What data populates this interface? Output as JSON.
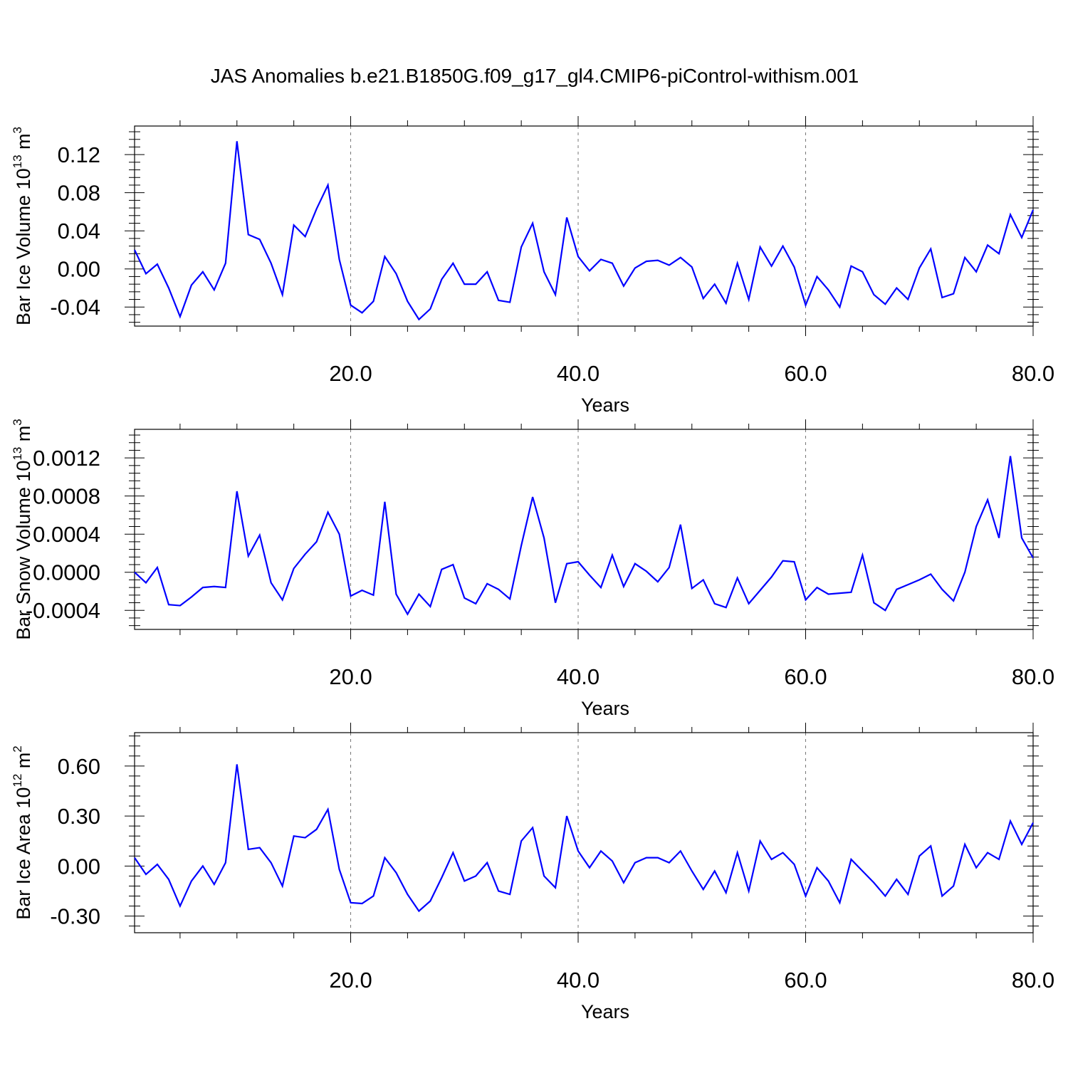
{
  "title": "JAS Anomalies b.e21.B1850G.f09_g17_gl4.CMIP6-piControl-withism.001",
  "series_color": "#0000ff",
  "chart_data": [
    {
      "type": "line",
      "ylabel": "Bar Ice Volume 10",
      "ylabel_exp": "13",
      "ylabel_unit": " m",
      "ylabel_unit_exp": "3",
      "xlabel": "Years",
      "xlim": [
        1,
        80
      ],
      "ylim": [
        -0.06,
        0.15
      ],
      "x_ticks": [
        20,
        40,
        60,
        80
      ],
      "x_tick_labels": [
        "20.0",
        "40.0",
        "60.0",
        "80.0"
      ],
      "y_ticks": [
        -0.04,
        0.0,
        0.04,
        0.08,
        0.12
      ],
      "y_tick_labels": [
        "-0.04",
        "0.00",
        "0.04",
        "0.08",
        "0.12"
      ],
      "grid": "vertical dashed at major x ticks",
      "values": [
        0.02,
        -0.005,
        0.005,
        -0.02,
        -0.05,
        -0.017,
        -0.003,
        -0.022,
        0.006,
        0.134,
        0.036,
        0.031,
        0.006,
        -0.027,
        0.046,
        0.034,
        0.063,
        0.088,
        0.01,
        -0.038,
        -0.046,
        -0.034,
        0.013,
        -0.005,
        -0.034,
        -0.053,
        -0.042,
        -0.011,
        0.006,
        -0.016,
        -0.016,
        -0.003,
        -0.033,
        -0.035,
        0.023,
        0.048,
        -0.003,
        -0.027,
        0.054,
        0.013,
        -0.002,
        0.01,
        0.006,
        -0.018,
        0.001,
        0.008,
        0.009,
        0.004,
        0.012,
        0.002,
        -0.031,
        -0.016,
        -0.036,
        0.006,
        -0.032,
        0.023,
        0.003,
        0.024,
        0.002,
        -0.038,
        -0.008,
        -0.022,
        -0.04,
        0.003,
        -0.003,
        -0.027,
        -0.037,
        -0.02,
        -0.032,
        0.001,
        0.021,
        -0.03,
        -0.026,
        0.012,
        -0.003,
        0.025,
        0.016,
        0.057,
        0.033,
        0.062
      ]
    },
    {
      "type": "line",
      "ylabel": "Bar Snow Volume 10",
      "ylabel_exp": "13",
      "ylabel_unit": " m",
      "ylabel_unit_exp": "3",
      "xlabel": "Years",
      "xlim": [
        1,
        80
      ],
      "ylim": [
        -0.0006,
        0.0015
      ],
      "x_ticks": [
        20,
        40,
        60,
        80
      ],
      "x_tick_labels": [
        "20.0",
        "40.0",
        "60.0",
        "80.0"
      ],
      "y_ticks": [
        -0.0004,
        0.0,
        0.0004,
        0.0008,
        0.0012
      ],
      "y_tick_labels": [
        "-0.0004",
        "0.0000",
        "0.0004",
        "0.0008",
        "0.0012"
      ],
      "grid": "vertical dashed at major x ticks",
      "values": [
        0.0,
        -0.00011,
        5e-05,
        -0.00034,
        -0.00035,
        -0.00026,
        -0.00016,
        -0.00015,
        -0.00016,
        0.00085,
        0.00017,
        0.00039,
        -0.00011,
        -0.00029,
        4e-05,
        0.00019,
        0.00032,
        0.00063,
        0.0004,
        -0.00025,
        -0.00019,
        -0.00024,
        0.00074,
        -0.00023,
        -0.00044,
        -0.00023,
        -0.00036,
        3e-05,
        8e-05,
        -0.00027,
        -0.00033,
        -0.00012,
        -0.00018,
        -0.00028,
        0.00028,
        0.00079,
        0.00036,
        -0.00032,
        9e-05,
        0.00011,
        -3e-05,
        -0.00016,
        0.00018,
        -0.00015,
        9e-05,
        1e-05,
        -0.0001,
        5e-05,
        0.0005,
        -0.00017,
        -8e-05,
        -0.00033,
        -0.00037,
        -6e-05,
        -0.00033,
        -0.00019,
        -5e-05,
        0.00012,
        0.00011,
        -0.00029,
        -0.00016,
        -0.00023,
        -0.00022,
        -0.00021,
        0.00018,
        -0.00032,
        -0.0004,
        -0.00018,
        -0.00013,
        -8e-05,
        -2e-05,
        -0.00018,
        -0.0003,
        0.0,
        0.00048,
        0.00076,
        0.00036,
        0.00122,
        0.00036,
        0.00015
      ]
    },
    {
      "type": "line",
      "ylabel": "Bar Ice Area 10",
      "ylabel_exp": "12",
      "ylabel_unit": " m",
      "ylabel_unit_exp": "2",
      "xlabel": "Years",
      "xlim": [
        1,
        80
      ],
      "ylim": [
        -0.4,
        0.8
      ],
      "x_ticks": [
        20,
        40,
        60,
        80
      ],
      "x_tick_labels": [
        "20.0",
        "40.0",
        "60.0",
        "80.0"
      ],
      "y_ticks": [
        -0.3,
        0.0,
        0.3,
        0.6
      ],
      "y_tick_labels": [
        "-0.30",
        "0.00",
        "0.30",
        "0.60"
      ],
      "grid": "vertical dashed at major x ticks",
      "values": [
        0.05,
        -0.05,
        0.01,
        -0.08,
        -0.24,
        -0.09,
        0.0,
        -0.11,
        0.02,
        0.61,
        0.1,
        0.11,
        0.02,
        -0.12,
        0.18,
        0.17,
        0.22,
        0.34,
        -0.02,
        -0.22,
        -0.225,
        -0.18,
        0.05,
        -0.04,
        -0.17,
        -0.27,
        -0.21,
        -0.07,
        0.08,
        -0.09,
        -0.06,
        0.02,
        -0.15,
        -0.17,
        0.15,
        0.23,
        -0.06,
        -0.13,
        0.3,
        0.09,
        -0.01,
        0.09,
        0.03,
        -0.1,
        0.02,
        0.05,
        0.05,
        0.02,
        0.09,
        -0.03,
        -0.14,
        -0.03,
        -0.16,
        0.08,
        -0.15,
        0.15,
        0.04,
        0.08,
        0.01,
        -0.18,
        -0.01,
        -0.09,
        -0.22,
        0.04,
        -0.03,
        -0.1,
        -0.18,
        -0.08,
        -0.17,
        0.06,
        0.12,
        -0.18,
        -0.12,
        0.13,
        -0.01,
        0.08,
        0.04,
        0.27,
        0.13,
        0.26
      ]
    }
  ]
}
